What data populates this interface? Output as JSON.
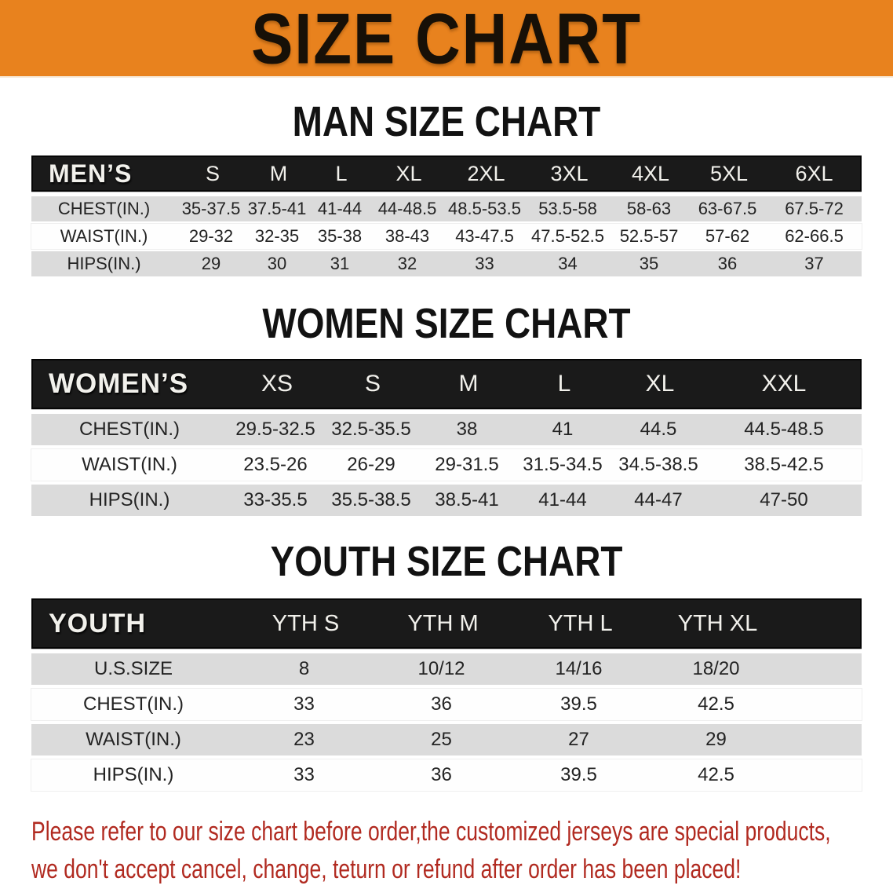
{
  "banner": {
    "title": "SIZE CHART"
  },
  "colors": {
    "banner_orange": "#E8821E",
    "header_bar_black": "#1A1A1A",
    "stripe_gray": "#DBDBDB",
    "notice_red": "#B12A20"
  },
  "sections": [
    {
      "heading": "MAN SIZE CHART",
      "table": {
        "corner_label": "MEN’S",
        "columns": [
          "S",
          "M",
          "L",
          "XL",
          "2XL",
          "3XL",
          "4XL",
          "5XL",
          "6XL"
        ],
        "rows": [
          {
            "label": "CHEST(IN.)",
            "values": [
              "35-37.5",
              "37.5-41",
              "41-44",
              "44-48.5",
              "48.5-53.5",
              "53.5-58",
              "58-63",
              "63-67.5",
              "67.5-72"
            ]
          },
          {
            "label": "WAIST(IN.)",
            "values": [
              "29-32",
              "32-35",
              "35-38",
              "38-43",
              "43-47.5",
              "47.5-52.5",
              "52.5-57",
              "57-62",
              "62-66.5"
            ]
          },
          {
            "label": "HIPS(IN.)",
            "values": [
              "29",
              "30",
              "31",
              "32",
              "33",
              "34",
              "35",
              "36",
              "37"
            ]
          }
        ]
      }
    },
    {
      "heading": "WOMEN SIZE CHART",
      "table": {
        "corner_label": "WOMEN’S",
        "columns": [
          "XS",
          "S",
          "M",
          "L",
          "XL",
          "XXL"
        ],
        "rows": [
          {
            "label": "CHEST(IN.)",
            "values": [
              "29.5-32.5",
              "32.5-35.5",
              "38",
              "41",
              "44.5",
              "44.5-48.5"
            ]
          },
          {
            "label": "WAIST(IN.)",
            "values": [
              "23.5-26",
              "26-29",
              "29-31.5",
              "31.5-34.5",
              "34.5-38.5",
              "38.5-42.5"
            ]
          },
          {
            "label": "HIPS(IN.)",
            "values": [
              "33-35.5",
              "35.5-38.5",
              "38.5-41",
              "41-44",
              "44-47",
              "47-50"
            ]
          }
        ]
      }
    },
    {
      "heading": "YOUTH SIZE CHART",
      "table": {
        "corner_label": "YOUTH",
        "columns": [
          "YTH S",
          "YTH M",
          "YTH L",
          "YTH XL"
        ],
        "rows": [
          {
            "label": "U.S.SIZE",
            "values": [
              "8",
              "10/12",
              "14/16",
              "18/20"
            ]
          },
          {
            "label": "CHEST(IN.)",
            "values": [
              "33",
              "36",
              "39.5",
              "42.5"
            ]
          },
          {
            "label": "WAIST(IN.)",
            "values": [
              "23",
              "25",
              "27",
              "29"
            ]
          },
          {
            "label": "HIPS(IN.)",
            "values": [
              "33",
              "36",
              "39.5",
              "42.5"
            ]
          }
        ]
      }
    }
  ],
  "footer": {
    "line1": "Please refer to our size chart before order,the customized jerseys are special products,",
    "line2": "we don't accept cancel, change, teturn or refund after order has been placed!"
  }
}
